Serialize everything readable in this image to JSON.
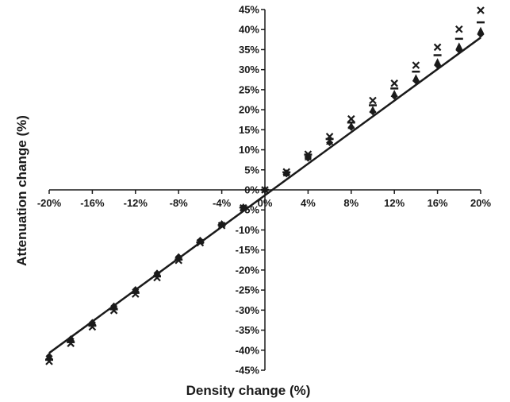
{
  "chart_data": {
    "type": "scatter",
    "title": "",
    "xlabel": "Density change (%)",
    "ylabel": "Attenuation change (%)",
    "xlim": [
      -20,
      20
    ],
    "ylim": [
      -45,
      45
    ],
    "x_ticks": [
      "-20%",
      "-16%",
      "-12%",
      "-8%",
      "-4%",
      "0%",
      "4%",
      "8%",
      "12%",
      "16%",
      "20%"
    ],
    "y_ticks": [
      "45%",
      "40%",
      "35%",
      "30%",
      "25%",
      "20%",
      "15%",
      "10%",
      "5%",
      "0%",
      "-5%",
      "-10%",
      "-15%",
      "-20%",
      "-25%",
      "-30%",
      "-35%",
      "-40%",
      "-45%"
    ],
    "x": [
      -20,
      -18,
      -16,
      -14,
      -12,
      -10,
      -8,
      -6,
      -4,
      -2,
      0,
      2,
      4,
      6,
      8,
      10,
      12,
      14,
      16,
      18,
      20
    ],
    "series": [
      {
        "marker": "diamond",
        "values": [
          -41.5,
          -37.2,
          -33.1,
          -29.0,
          -24.9,
          -20.8,
          -16.7,
          -12.6,
          -8.5,
          -4.3,
          0,
          4.0,
          7.9,
          11.8,
          15.6,
          19.5,
          23.4,
          27.2,
          31.1,
          34.9,
          38.8
        ]
      },
      {
        "marker": "triangle",
        "values": [
          -41.8,
          -37.5,
          -33.4,
          -29.2,
          -25.1,
          -21.0,
          -16.9,
          -12.8,
          -8.6,
          -4.4,
          0,
          4.1,
          8.1,
          12.0,
          15.9,
          19.9,
          23.9,
          27.8,
          31.8,
          35.7,
          39.6
        ]
      },
      {
        "marker": "x",
        "values": [
          -42.8,
          -38.3,
          -34.2,
          -30.1,
          -26.0,
          -21.9,
          -17.6,
          -13.2,
          -8.9,
          -4.5,
          0,
          4.5,
          8.9,
          13.3,
          17.7,
          22.3,
          26.6,
          31.1,
          35.6,
          40.1,
          44.8
        ]
      },
      {
        "marker": "dash",
        "values": [
          -42.4,
          -38.0,
          -33.9,
          -29.8,
          -25.7,
          -21.6,
          -17.4,
          -13.1,
          -8.8,
          -4.4,
          0,
          4.4,
          8.8,
          12.7,
          16.8,
          21.1,
          25.3,
          29.5,
          33.6,
          37.7,
          41.8
        ]
      }
    ],
    "trendline": {
      "x": [
        -20,
        20
      ],
      "y": [
        -40.7,
        38.0
      ]
    },
    "grid": false,
    "legend": "none"
  }
}
